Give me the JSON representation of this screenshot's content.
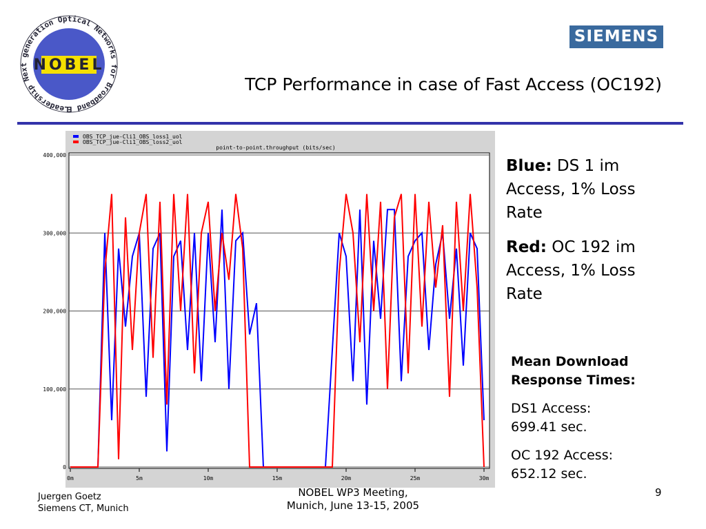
{
  "slide": {
    "title": "TCP Performance in case of Fast Access (OC192)",
    "logo_left": {
      "center": "NOBEL",
      "ring": "Leadership Next generation Optical Networks for Broadband European"
    },
    "logo_right": "SIEMENS",
    "legend_notes": [
      {
        "label": "Blue:",
        "text": "DS 1 im Access, 1% Loss Rate"
      },
      {
        "label": "Red:",
        "text": "OC 192 im Access, 1% Loss Rate"
      }
    ],
    "results_heading": "Mean Download Response Times:",
    "results": [
      {
        "line1": "DS1 Access:",
        "line2": "699.41 sec."
      },
      {
        "line1": "OC 192 Access:",
        "line2": "652.12 sec."
      }
    ],
    "footer": {
      "author": "Juergen Goetz",
      "affiliation": "Siemens CT, Munich",
      "event": "NOBEL WP3 Meeting,",
      "event_date": "Munich, June 13-15, 2005",
      "page": "9"
    }
  },
  "chart_data": {
    "type": "line",
    "title": "point-to-point.throughput (bits/sec)",
    "x": [
      0,
      0.5,
      1,
      1.5,
      2,
      2.5,
      3,
      3.5,
      4,
      4.5,
      5,
      5.5,
      6,
      6.5,
      7,
      7.5,
      8,
      8.5,
      9,
      9.5,
      10,
      10.5,
      11,
      11.5,
      12,
      12.5,
      13,
      13.5,
      14,
      14.5,
      15,
      15.5,
      16,
      16.5,
      17,
      17.5,
      18,
      18.5,
      19,
      19.5,
      20,
      20.5,
      21,
      21.5,
      22,
      22.5,
      23,
      23.5,
      24,
      24.5,
      25,
      25.5,
      26,
      26.5,
      27,
      27.5,
      28,
      28.5,
      29,
      29.5,
      30
    ],
    "series": [
      {
        "name": "OBS_TCP_jue-Cli1_OBS_loss1_uol",
        "color": "#0000ff",
        "values": [
          0,
          0,
          0,
          0,
          0,
          300000,
          60000,
          280000,
          180000,
          270000,
          300000,
          90000,
          280000,
          300000,
          20000,
          270000,
          290000,
          150000,
          300000,
          110000,
          300000,
          160000,
          330000,
          100000,
          290000,
          300000,
          170000,
          210000,
          0,
          0,
          0,
          0,
          0,
          0,
          0,
          0,
          0,
          0,
          150000,
          300000,
          270000,
          110000,
          330000,
          80000,
          290000,
          190000,
          330000,
          330000,
          110000,
          270000,
          290000,
          300000,
          150000,
          260000,
          300000,
          190000,
          280000,
          130000,
          300000,
          280000,
          60000
        ]
      },
      {
        "name": "OBS_TCP_jue-Cli1_OBS_loss2_uol",
        "color": "#ff0000",
        "values": [
          0,
          0,
          0,
          0,
          0,
          250000,
          350000,
          10000,
          320000,
          150000,
          300000,
          350000,
          140000,
          340000,
          80000,
          350000,
          200000,
          350000,
          120000,
          300000,
          340000,
          200000,
          300000,
          240000,
          350000,
          280000,
          0,
          0,
          0,
          0,
          0,
          0,
          0,
          0,
          0,
          0,
          0,
          0,
          0,
          250000,
          350000,
          300000,
          160000,
          350000,
          200000,
          340000,
          100000,
          320000,
          350000,
          120000,
          350000,
          180000,
          340000,
          230000,
          310000,
          90000,
          340000,
          200000,
          350000,
          230000,
          0
        ]
      }
    ],
    "xlim": [
      0,
      30
    ],
    "xticks": [
      {
        "value": 0,
        "label": "0m"
      },
      {
        "value": 5,
        "label": "5m"
      },
      {
        "value": 10,
        "label": "10m"
      },
      {
        "value": 15,
        "label": "15m"
      },
      {
        "value": 20,
        "label": "20m"
      },
      {
        "value": 25,
        "label": "25m"
      },
      {
        "value": 30,
        "label": "30m"
      }
    ],
    "ylim": [
      0,
      400000
    ],
    "yticks": [
      0,
      {
        "value": 100000,
        "label": "100,000"
      },
      {
        "value": 200000,
        "label": "200,000"
      },
      {
        "value": 300000,
        "label": "300,000"
      },
      {
        "value": 400000,
        "label": "400,000"
      }
    ],
    "grid": true
  }
}
